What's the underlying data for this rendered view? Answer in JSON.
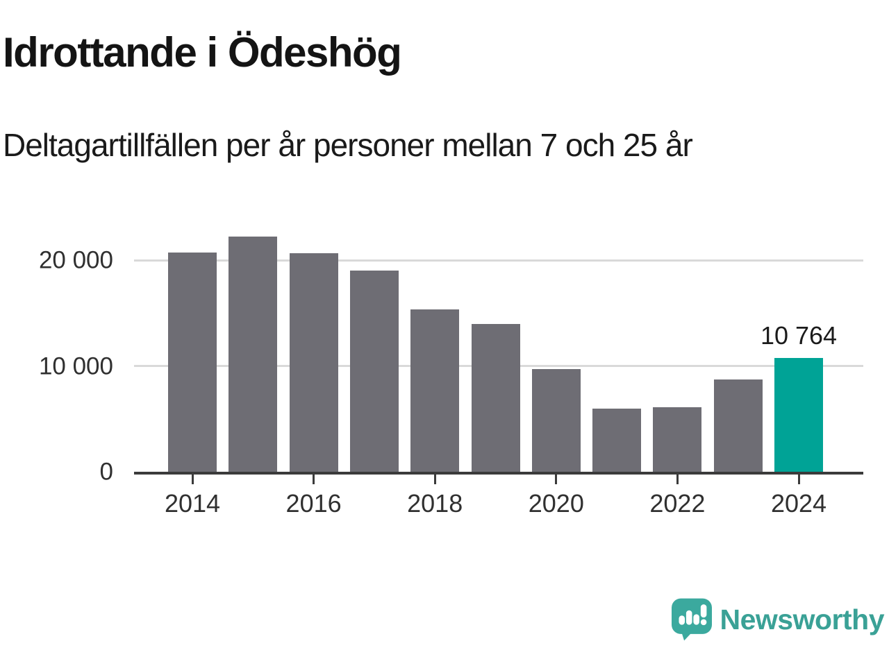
{
  "header": {
    "title": "Idrottande i Ödeshög",
    "subtitle": "Deltagartillfällen per år personer mellan 7 och 25 år"
  },
  "chart_data": {
    "type": "bar",
    "title": "Idrottande i Ödeshög",
    "subtitle": "Deltagartillfällen per år personer mellan 7 och 25 år",
    "categories": [
      "2014",
      "2015",
      "2016",
      "2017",
      "2018",
      "2019",
      "2020",
      "2021",
      "2022",
      "2023",
      "2024"
    ],
    "values": [
      20700,
      22200,
      20650,
      19000,
      15350,
      14000,
      9700,
      6000,
      6100,
      8700,
      10764
    ],
    "highlight": {
      "index": 10,
      "label": "10 764",
      "value": 10764
    },
    "xtick_labels": [
      "2014",
      "2016",
      "2018",
      "2020",
      "2022",
      "2024"
    ],
    "ytick_values": [
      0,
      10000,
      20000
    ],
    "ytick_labels": [
      "0",
      "10 000",
      "20 000"
    ],
    "ylim": [
      0,
      23000
    ],
    "xlabel": "",
    "ylabel": "",
    "grid": true,
    "legend": false
  },
  "colors": {
    "bar": "#6e6d74",
    "highlight": "#00a396",
    "grid": "#d9d9d9",
    "axis": "#3b3b3b",
    "text": "#141414",
    "brand": "#3aa196"
  },
  "branding": {
    "wordmark": "Newsworthy",
    "logo_icon": "newsworthy-speech-bubble-bar-chart-icon"
  }
}
